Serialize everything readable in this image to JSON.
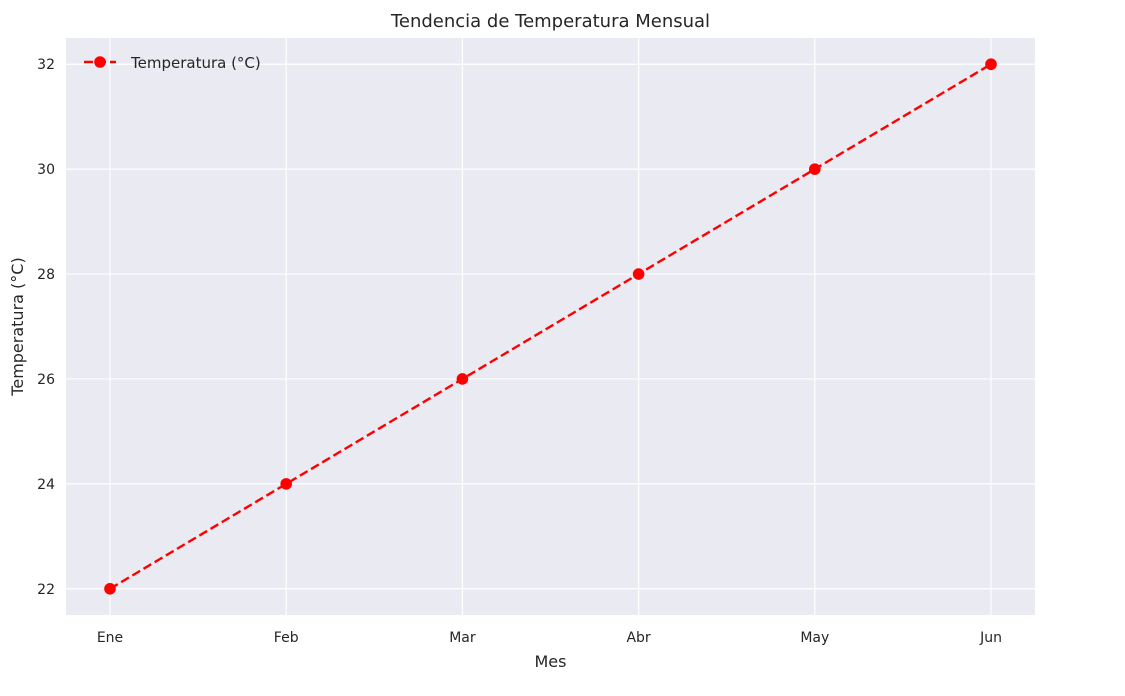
{
  "chart_data": {
    "type": "line",
    "title": "Tendencia de Temperatura Mensual",
    "xlabel": "Mes",
    "ylabel": "Temperatura (°C)",
    "categories": [
      "Ene",
      "Feb",
      "Mar",
      "Abr",
      "May",
      "Jun"
    ],
    "series": [
      {
        "name": "Temperatura (°C)",
        "values": [
          22,
          24,
          26,
          28,
          30,
          32
        ],
        "color": "#ff0000",
        "line_style": "dashed",
        "marker": "circle"
      }
    ],
    "ylim": [
      21.5,
      32.5
    ],
    "yticks": [
      22,
      24,
      26,
      28,
      30,
      32
    ],
    "grid": true,
    "legend_position": "top-left",
    "colors": {
      "plot_background": "#eaeaf2",
      "grid": "#ffffff",
      "text": "#262626"
    }
  }
}
